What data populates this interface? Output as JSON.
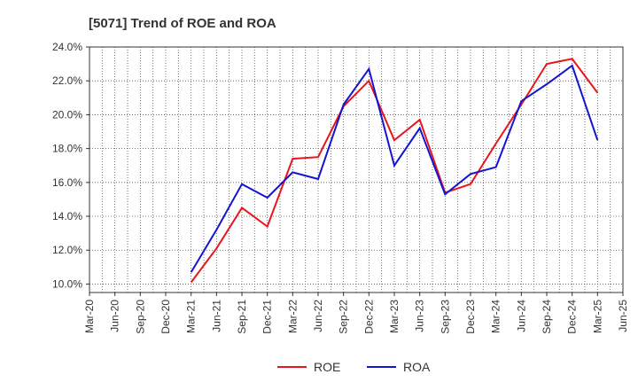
{
  "chart_data": {
    "type": "line",
    "title": "[5071]  Trend of ROE and ROA",
    "xlabel": "",
    "ylabel": "",
    "x_ticks": [
      "Mar-20",
      "Jun-20",
      "Sep-20",
      "Dec-20",
      "Mar-21",
      "Jun-21",
      "Sep-21",
      "Dec-21",
      "Mar-22",
      "Jun-22",
      "Sep-22",
      "Dec-22",
      "Mar-23",
      "Jun-23",
      "Sep-23",
      "Dec-23",
      "Mar-24",
      "Jun-24",
      "Sep-24",
      "Dec-24",
      "Mar-25",
      "Jun-25"
    ],
    "y_ticks": [
      "10.0%",
      "12.0%",
      "14.0%",
      "16.0%",
      "18.0%",
      "20.0%",
      "22.0%",
      "24.0%"
    ],
    "ylim": [
      9.5,
      24.0
    ],
    "grid": true,
    "legend_position": "bottom-center",
    "series": [
      {
        "name": "ROE",
        "color": "#e8161c",
        "x": [
          "Mar-21",
          "Jun-21",
          "Sep-21",
          "Dec-21",
          "Mar-22",
          "Jun-22",
          "Sep-22",
          "Dec-22",
          "Mar-23",
          "Jun-23",
          "Sep-23",
          "Dec-23",
          "Mar-24",
          "Jun-24",
          "Sep-24",
          "Dec-24",
          "Mar-25"
        ],
        "values": [
          10.1,
          12.1,
          14.5,
          13.4,
          17.4,
          17.5,
          20.5,
          22.0,
          18.5,
          19.7,
          15.4,
          15.9,
          18.3,
          20.6,
          23.0,
          23.3,
          21.3
        ]
      },
      {
        "name": "ROA",
        "color": "#1414d2",
        "x": [
          "Mar-21",
          "Jun-21",
          "Sep-21",
          "Dec-21",
          "Mar-22",
          "Jun-22",
          "Sep-22",
          "Dec-22",
          "Mar-23",
          "Jun-23",
          "Sep-23",
          "Dec-23",
          "Mar-24",
          "Jun-24",
          "Sep-24",
          "Dec-24",
          "Mar-25"
        ],
        "values": [
          10.7,
          13.2,
          15.9,
          15.1,
          16.6,
          16.2,
          20.6,
          22.7,
          17.0,
          19.2,
          15.3,
          16.5,
          16.9,
          20.8,
          21.8,
          22.9,
          18.5
        ]
      }
    ]
  }
}
